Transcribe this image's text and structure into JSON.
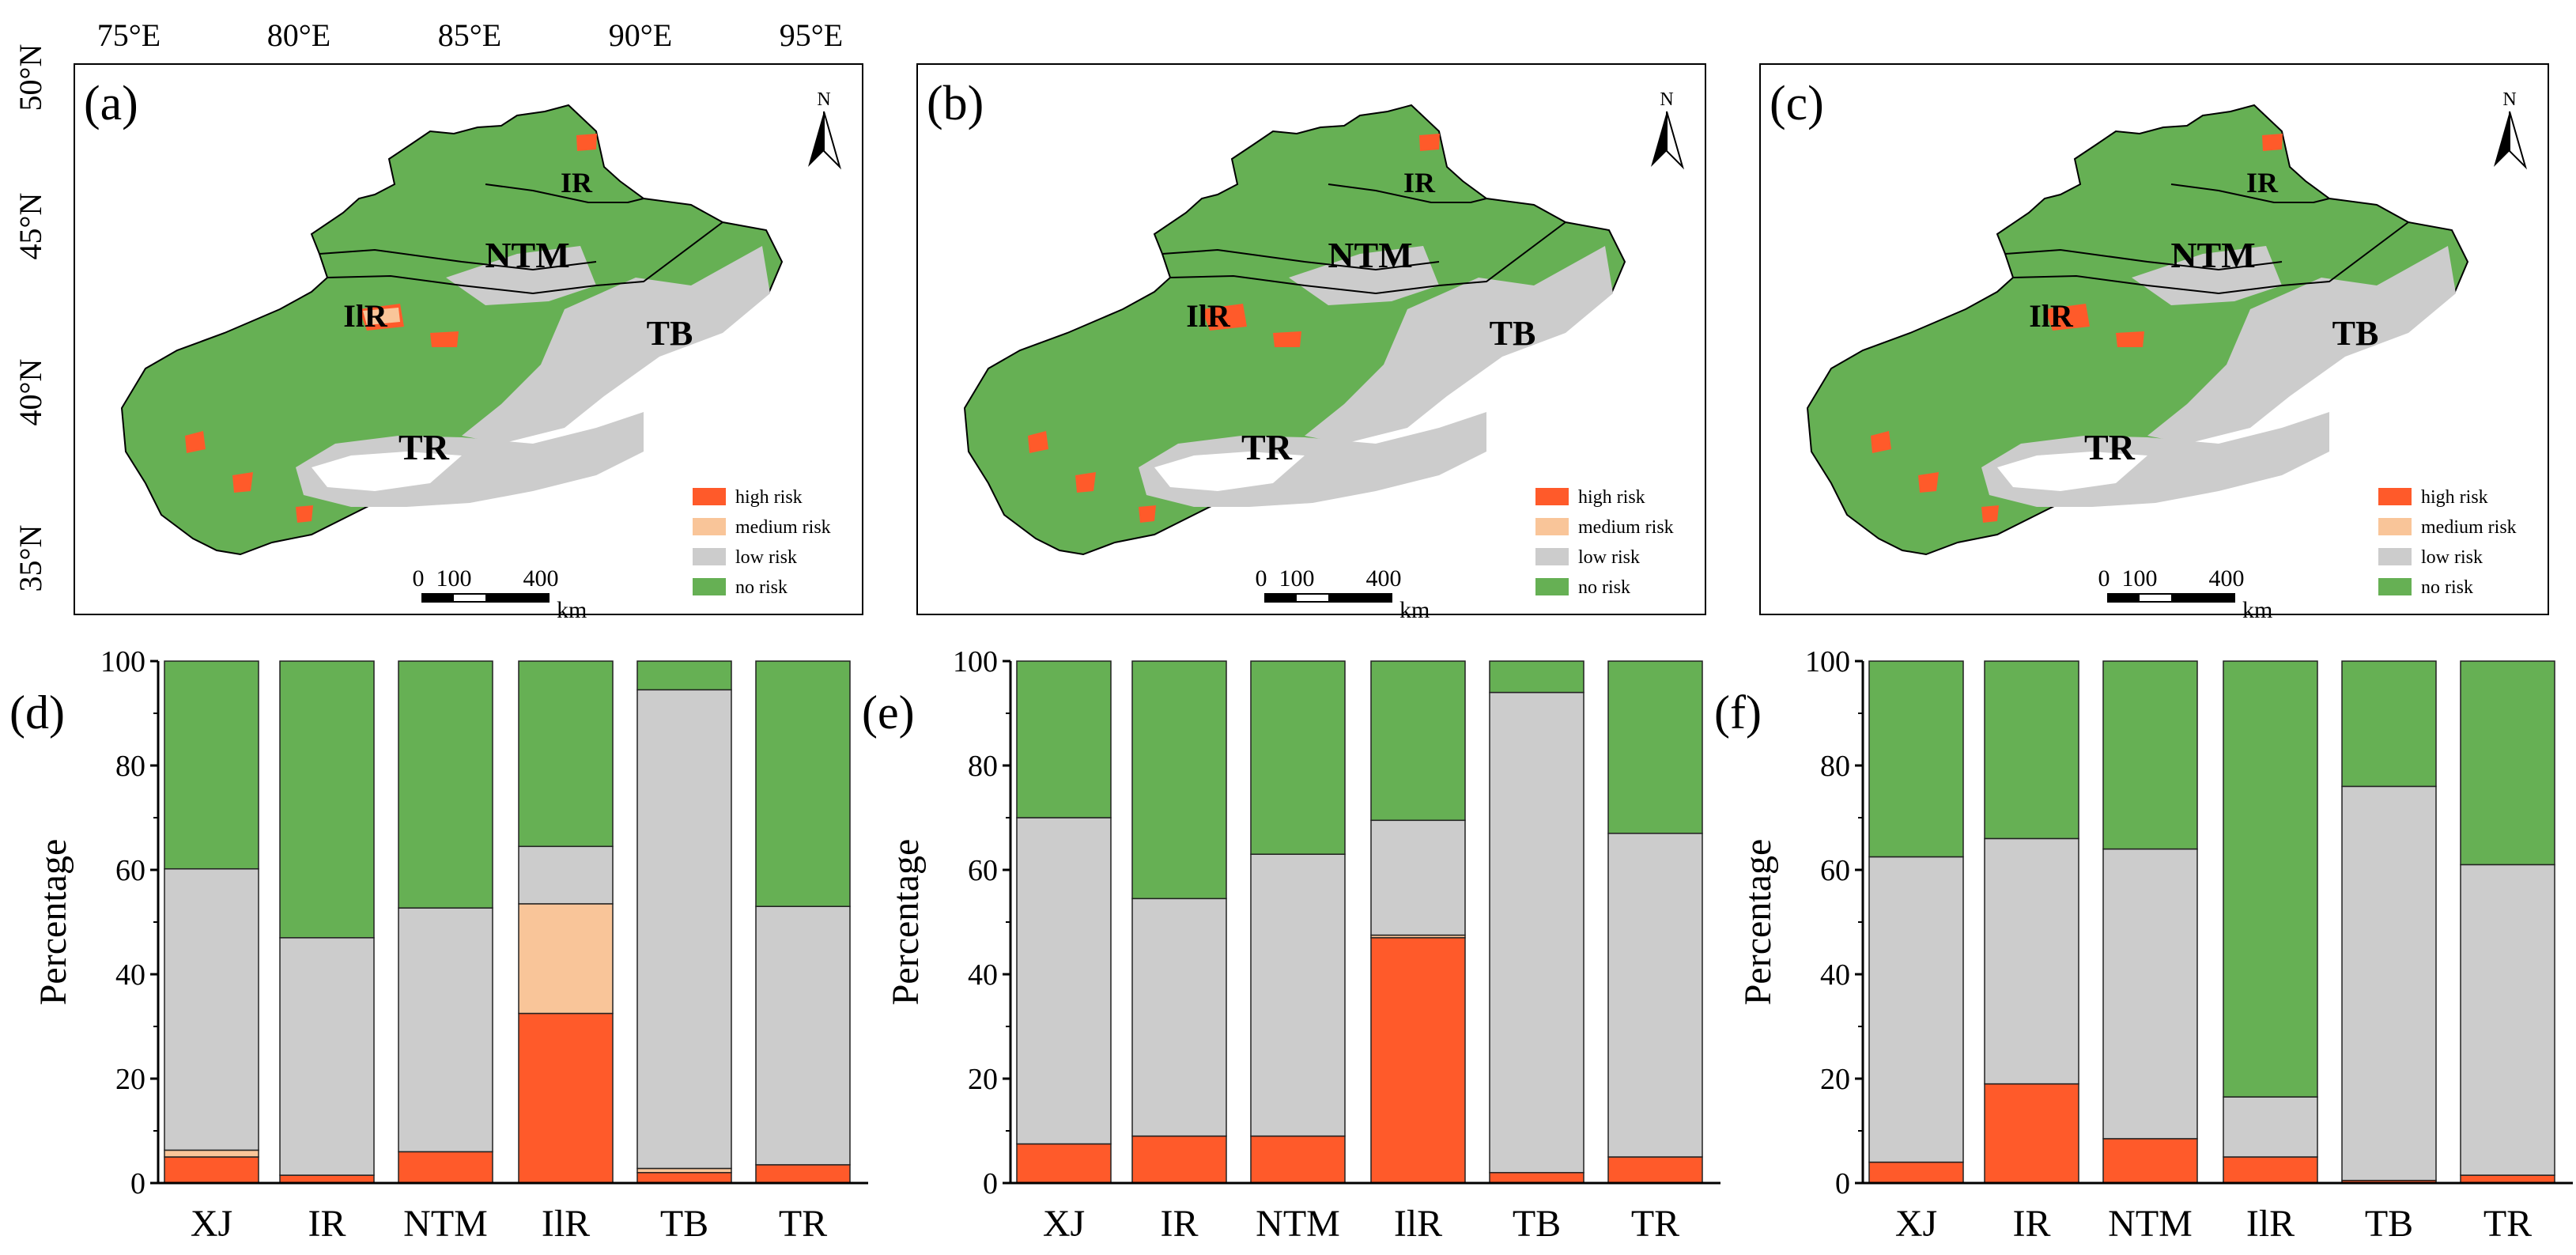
{
  "colors": {
    "high": "#ff5a2a",
    "medium": "#f9c599",
    "low": "#cccccc",
    "none": "#66b054",
    "background": "#ffffff"
  },
  "maps": {
    "lon_labels": [
      "75°E",
      "80°E",
      "85°E",
      "90°E",
      "95°E"
    ],
    "lat_labels": [
      "50°N",
      "45°N",
      "40°N",
      "35°N"
    ],
    "legend": [
      "high risk",
      "medium risk",
      "low risk",
      "no risk"
    ],
    "north_label": "N",
    "scale_labels": [
      "0",
      "100",
      "400"
    ],
    "scale_unit": "km",
    "panels": [
      {
        "label": "(a)",
        "regions": [
          "IR",
          "NTM",
          "IlR",
          "TB",
          "TR"
        ]
      },
      {
        "label": "(b)",
        "regions": [
          "IR",
          "NTM",
          "IlR",
          "TB",
          "TR"
        ]
      },
      {
        "label": "(c)",
        "regions": [
          "IR",
          "NTM",
          "IlR",
          "TB",
          "TR"
        ]
      }
    ]
  },
  "chart_data": [
    {
      "type": "bar",
      "stacked": true,
      "panel": "(d)",
      "categories": [
        "XJ",
        "IR",
        "NTM",
        "IlR",
        "TB",
        "TR"
      ],
      "ylabel": "Percentage",
      "ylim": [
        0,
        100
      ],
      "yticks": [
        "0",
        "20",
        "40",
        "60",
        "80",
        "100"
      ],
      "series": [
        {
          "name": "high risk",
          "values": [
            5,
            1.5,
            6,
            32.5,
            2,
            3.5
          ]
        },
        {
          "name": "medium risk",
          "values": [
            1.3,
            0,
            0,
            21,
            0.8,
            0
          ]
        },
        {
          "name": "low risk",
          "values": [
            53.9,
            45.5,
            46.7,
            11,
            91.7,
            49.5
          ]
        },
        {
          "name": "no risk",
          "values": [
            39.8,
            53,
            47.3,
            35.5,
            5.5,
            47
          ]
        }
      ]
    },
    {
      "type": "bar",
      "stacked": true,
      "panel": "(e)",
      "categories": [
        "XJ",
        "IR",
        "NTM",
        "IlR",
        "TB",
        "TR"
      ],
      "ylabel": "Percentage",
      "ylim": [
        0,
        100
      ],
      "yticks": [
        "0",
        "20",
        "40",
        "60",
        "80",
        "100"
      ],
      "series": [
        {
          "name": "high risk",
          "values": [
            7.5,
            9,
            9,
            47,
            2,
            5
          ]
        },
        {
          "name": "medium risk",
          "values": [
            0,
            0,
            0,
            0.5,
            0,
            0
          ]
        },
        {
          "name": "low risk",
          "values": [
            62.5,
            45.5,
            54,
            22,
            92,
            62
          ]
        },
        {
          "name": "no risk",
          "values": [
            30,
            45.5,
            37,
            30.5,
            6,
            33
          ]
        }
      ]
    },
    {
      "type": "bar",
      "stacked": true,
      "panel": "(f)",
      "categories": [
        "XJ",
        "IR",
        "NTM",
        "IlR",
        "TB",
        "TR"
      ],
      "ylabel": "Percentage",
      "ylim": [
        0,
        100
      ],
      "yticks": [
        "0",
        "20",
        "40",
        "60",
        "80",
        "100"
      ],
      "series": [
        {
          "name": "high risk",
          "values": [
            4,
            19,
            8.5,
            5,
            0.5,
            1.5
          ]
        },
        {
          "name": "medium risk",
          "values": [
            0,
            0,
            0,
            0,
            0,
            0
          ]
        },
        {
          "name": "low risk",
          "values": [
            58.5,
            47,
            55.5,
            11.5,
            75.5,
            59.5
          ]
        },
        {
          "name": "no risk",
          "values": [
            37.5,
            34,
            36,
            83.5,
            24,
            39
          ]
        }
      ]
    }
  ]
}
